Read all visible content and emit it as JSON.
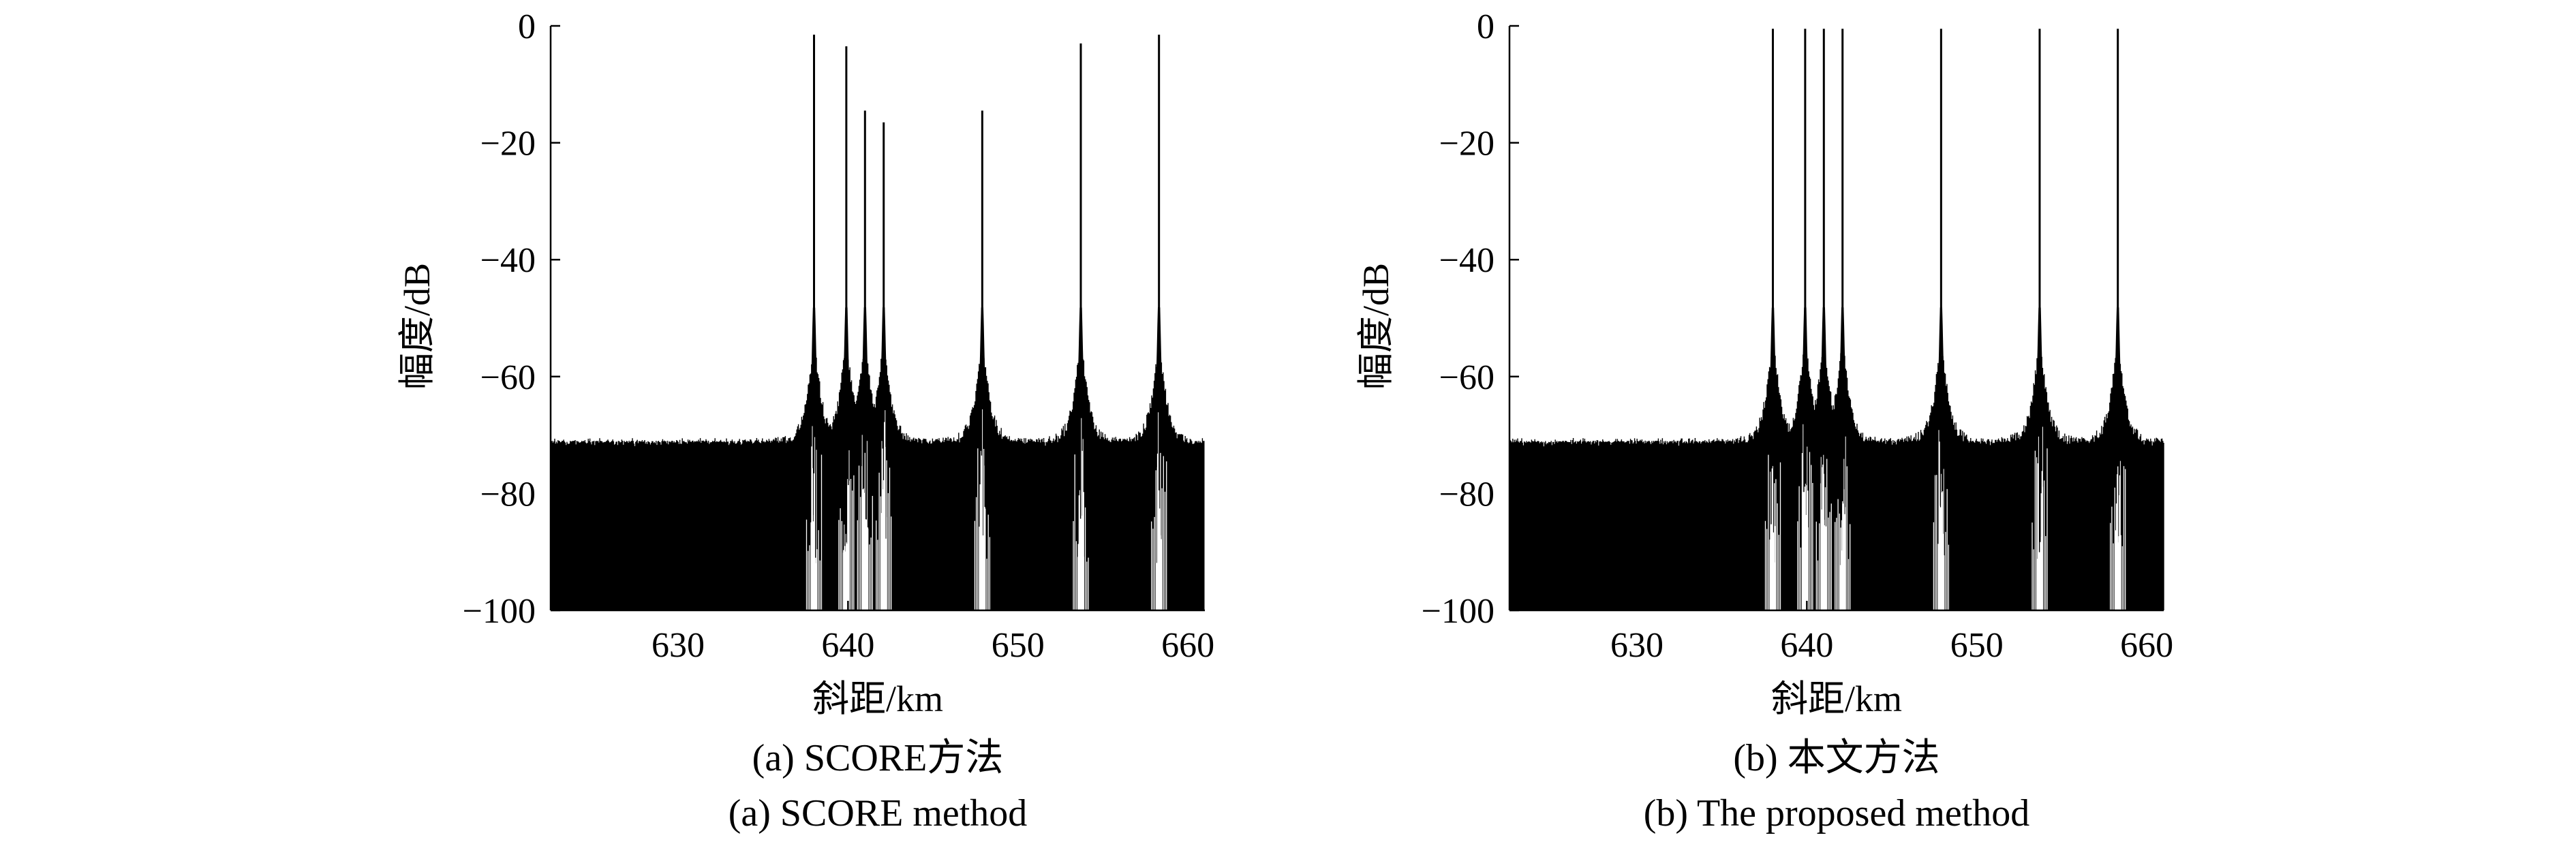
{
  "chart_data": [
    {
      "type": "line",
      "panel": "a",
      "xlabel": "斜距/km",
      "ylabel": "幅度/dB",
      "xlim": [
        622.5,
        661.0
      ],
      "ylim": [
        -100,
        0
      ],
      "xticks": [
        630,
        640,
        650,
        660
      ],
      "yticks": [
        0,
        -20,
        -40,
        -60,
        -80,
        -100
      ],
      "xtick_labels": [
        "630",
        "640",
        "650",
        "660"
      ],
      "ytick_labels": [
        "0",
        "−20",
        "−40",
        "−60",
        "−80",
        "−100"
      ],
      "grid": false,
      "noise_floor_db": -72,
      "peaks": [
        {
          "x": 638.0,
          "y": -1.5
        },
        {
          "x": 639.9,
          "y": -3.5
        },
        {
          "x": 641.0,
          "y": -14.5
        },
        {
          "x": 642.1,
          "y": -16.5
        },
        {
          "x": 647.9,
          "y": -14.5
        },
        {
          "x": 653.7,
          "y": -3.0
        },
        {
          "x": 658.3,
          "y": -1.5
        }
      ],
      "caption_cn": "(a) SCORE方法",
      "caption_en": "(a) SCORE method"
    },
    {
      "type": "line",
      "panel": "b",
      "xlabel": "斜距/km",
      "ylabel": "幅度/dB",
      "xlim": [
        622.5,
        661.0
      ],
      "ylim": [
        -100,
        0
      ],
      "xticks": [
        630,
        640,
        650,
        660
      ],
      "yticks": [
        0,
        -20,
        -40,
        -60,
        -80,
        -100
      ],
      "xtick_labels": [
        "630",
        "640",
        "650",
        "660"
      ],
      "ytick_labels": [
        "0",
        "−20",
        "−40",
        "−60",
        "−80",
        "−100"
      ],
      "grid": false,
      "noise_floor_db": -72,
      "peaks": [
        {
          "x": 638.0,
          "y": -0.5
        },
        {
          "x": 639.9,
          "y": -0.5
        },
        {
          "x": 641.0,
          "y": -0.5
        },
        {
          "x": 642.1,
          "y": -0.5
        },
        {
          "x": 647.9,
          "y": -0.5
        },
        {
          "x": 653.7,
          "y": -0.5
        },
        {
          "x": 658.3,
          "y": -0.5
        }
      ],
      "caption_cn": "(b) 本文方法",
      "caption_en": "(b) The proposed method"
    }
  ]
}
